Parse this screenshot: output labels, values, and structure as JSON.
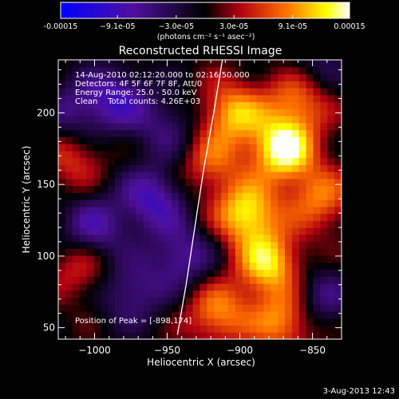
{
  "chart_data": {
    "type": "heatmap",
    "title": "Reconstructed RHESSI Image",
    "colorbar": {
      "min": -0.00015,
      "max": 0.00015,
      "tick_labels": [
        "-0.00015",
        "−9.1e-05",
        "−3.0e-05",
        "3.0e-05",
        "9.1e-05",
        "0.00015"
      ],
      "tick_values": [
        -0.00015,
        -9.1e-05,
        -3e-05,
        3e-05,
        9.1e-05,
        0.00015
      ],
      "unit_label": "(photons cm⁻² s⁻¹ asec⁻²)",
      "colors": [
        "#0000ff",
        "#5010a0",
        "#000000",
        "#b00010",
        "#ff7000",
        "#ffff00",
        "#ffffff"
      ]
    },
    "xlabel": "Heliocentric X (arcsec)",
    "ylabel": "Heliocentric Y (arcsec)",
    "xlim": [
      -1025,
      -830
    ],
    "ylim": [
      42,
      237
    ],
    "xticks": [
      -1000,
      -950,
      -900,
      -850
    ],
    "yticks": [
      50,
      100,
      150,
      200
    ],
    "xtick_labels": [
      "−1000",
      "−950",
      "−900",
      "−850"
    ],
    "ytick_labels": [
      "50",
      "100",
      "150",
      "200"
    ],
    "annotations": [
      "14-Aug-2010 02:12:20.000 to 02:16:50.000",
      "Detectors: 4F 5F 6F 7F 8F, Att/0",
      "Energy Range: 25.0 - 50.0 keV",
      "Clean    Total counts: 4.26E+03"
    ],
    "peak_label": "Position of Peak = [-898,174]",
    "peak": [
      -898,
      174
    ],
    "limb_curve": [
      [
        -943,
        45
      ],
      [
        -937,
        80
      ],
      [
        -931,
        120
      ],
      [
        -925,
        160
      ],
      [
        -918,
        200
      ],
      [
        -912,
        237
      ]
    ],
    "grid": false,
    "map_blobs": [
      {
        "x": -870,
        "y": 175,
        "v": 1.0
      },
      {
        "x": -895,
        "y": 130,
        "v": 0.85
      },
      {
        "x": -880,
        "y": 95,
        "v": 0.8
      },
      {
        "x": -905,
        "y": 200,
        "v": 0.7
      },
      {
        "x": -860,
        "y": 210,
        "v": 0.6
      },
      {
        "x": -845,
        "y": 140,
        "v": 0.55
      },
      {
        "x": -915,
        "y": 60,
        "v": 0.6
      },
      {
        "x": -870,
        "y": 55,
        "v": 0.65
      },
      {
        "x": -920,
        "y": 165,
        "v": 0.45
      },
      {
        "x": -1015,
        "y": 170,
        "v": 0.4
      },
      {
        "x": -1010,
        "y": 90,
        "v": 0.35
      },
      {
        "x": -985,
        "y": 210,
        "v": -0.55
      },
      {
        "x": -960,
        "y": 140,
        "v": -0.6
      },
      {
        "x": -1000,
        "y": 120,
        "v": -0.5
      },
      {
        "x": -975,
        "y": 75,
        "v": -0.45
      },
      {
        "x": -940,
        "y": 100,
        "v": -0.5
      },
      {
        "x": -1015,
        "y": 200,
        "v": -0.4
      },
      {
        "x": -950,
        "y": 190,
        "v": -0.35
      },
      {
        "x": -845,
        "y": 70,
        "v": -0.4
      },
      {
        "x": -850,
        "y": 230,
        "v": -0.3
      }
    ]
  },
  "footer": {
    "timestamp": "3-Aug-2013 12:43"
  }
}
